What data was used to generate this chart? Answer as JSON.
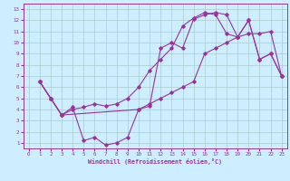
{
  "xlabel": "Windchill (Refroidissement éolien,°C)",
  "bg_color": "#cceeff",
  "line_color": "#993399",
  "grid_color": "#aacccc",
  "xlim": [
    -0.5,
    23.5
  ],
  "ylim": [
    0.5,
    13.5
  ],
  "xticks": [
    0,
    1,
    2,
    3,
    4,
    5,
    6,
    7,
    8,
    9,
    10,
    11,
    12,
    13,
    14,
    15,
    16,
    17,
    18,
    19,
    20,
    21,
    22,
    23
  ],
  "yticks": [
    1,
    2,
    3,
    4,
    5,
    6,
    7,
    8,
    9,
    10,
    11,
    12,
    13
  ],
  "line1_x": [
    1,
    2,
    3,
    4,
    5,
    6,
    7,
    8,
    9,
    10,
    11,
    12,
    13,
    14,
    15,
    16,
    17,
    18,
    19,
    20,
    21,
    22,
    23
  ],
  "line1_y": [
    6.5,
    5.0,
    3.5,
    4.2,
    1.2,
    1.5,
    0.8,
    1.0,
    1.5,
    4.0,
    4.3,
    9.5,
    10.0,
    9.5,
    12.1,
    12.5,
    12.7,
    12.5,
    10.5,
    12.0,
    8.5,
    9.0,
    7.0
  ],
  "line2_x": [
    1,
    2,
    3,
    4,
    5,
    6,
    7,
    8,
    9,
    10,
    11,
    12,
    13,
    14,
    15,
    16,
    17,
    18,
    19,
    20,
    21,
    22,
    23
  ],
  "line2_y": [
    6.5,
    5.0,
    3.5,
    4.0,
    4.2,
    4.5,
    4.3,
    4.5,
    5.0,
    6.0,
    7.5,
    8.5,
    9.5,
    11.5,
    12.2,
    12.7,
    12.5,
    10.8,
    10.5,
    12.0,
    8.5,
    9.0,
    7.0
  ],
  "line3_x": [
    1,
    2,
    3,
    10,
    11,
    12,
    13,
    14,
    15,
    16,
    17,
    18,
    19,
    20,
    21,
    22,
    23
  ],
  "line3_y": [
    6.5,
    5.0,
    3.5,
    4.0,
    4.5,
    5.0,
    5.5,
    6.0,
    6.5,
    9.0,
    9.5,
    10.0,
    10.5,
    10.8,
    10.8,
    11.0,
    7.0
  ],
  "figsize": [
    3.2,
    2.0
  ],
  "dpi": 100
}
